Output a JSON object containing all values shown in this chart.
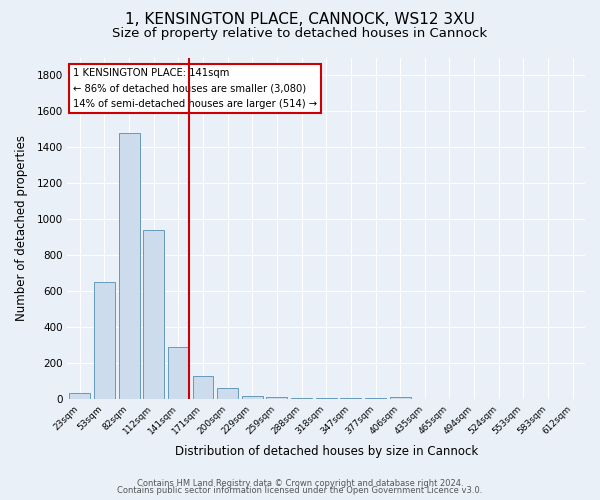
{
  "title1": "1, KENSINGTON PLACE, CANNOCK, WS12 3XU",
  "title2": "Size of property relative to detached houses in Cannock",
  "xlabel": "Distribution of detached houses by size in Cannock",
  "ylabel": "Number of detached properties",
  "footnote1": "Contains HM Land Registry data © Crown copyright and database right 2024.",
  "footnote2": "Contains public sector information licensed under the Open Government Licence v3.0.",
  "bin_labels": [
    "23sqm",
    "53sqm",
    "82sqm",
    "112sqm",
    "141sqm",
    "171sqm",
    "200sqm",
    "229sqm",
    "259sqm",
    "288sqm",
    "318sqm",
    "347sqm",
    "377sqm",
    "406sqm",
    "435sqm",
    "465sqm",
    "494sqm",
    "524sqm",
    "553sqm",
    "583sqm",
    "612sqm"
  ],
  "bar_heights": [
    35,
    650,
    1480,
    940,
    290,
    130,
    65,
    20,
    10,
    5,
    5,
    5,
    5,
    15,
    0,
    0,
    0,
    0,
    0,
    0,
    0
  ],
  "bar_color": "#ccdcec",
  "bar_edge_color": "#6699bb",
  "red_line_color": "#cc0000",
  "annotation_box_text": "1 KENSINGTON PLACE: 141sqm\n← 86% of detached houses are smaller (3,080)\n14% of semi-detached houses are larger (514) →",
  "ylim": [
    0,
    1900
  ],
  "yticks": [
    0,
    200,
    400,
    600,
    800,
    1000,
    1200,
    1400,
    1600,
    1800
  ],
  "background_color": "#eaf0f8",
  "plot_background_color": "#eaf0f8",
  "grid_color": "#ffffff",
  "title1_fontsize": 11,
  "title2_fontsize": 9.5
}
